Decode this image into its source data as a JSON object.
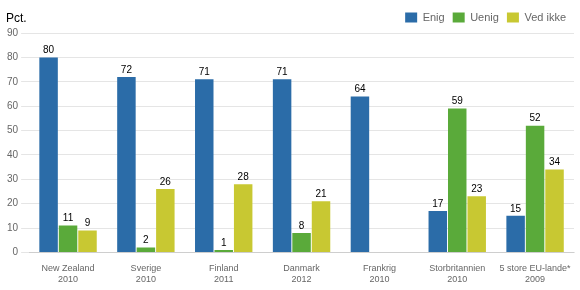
{
  "chart_data": {
    "type": "bar",
    "ylabel": "Pct.",
    "categories": [
      "New Zealand\n2010",
      "Sverige\n2010",
      "Finland\n2011",
      "Danmark\n2012",
      "Frankrig\n2010",
      "Storbritannien\n2010",
      "5 store EU-lande*\n2009"
    ],
    "series": [
      {
        "name": "Enig",
        "color": "#2b6ca8",
        "values": [
          80,
          72,
          71,
          71,
          64,
          17,
          15
        ]
      },
      {
        "name": "Uenig",
        "color": "#5aaa3a",
        "values": [
          11,
          2,
          1,
          8,
          0,
          59,
          52
        ],
        "value_labels": [
          "11",
          "2",
          "1",
          "8",
          null,
          "59",
          "52"
        ]
      },
      {
        "name": "Ved ikke",
        "color": "#c8c832",
        "values": [
          9,
          26,
          28,
          21,
          0,
          23,
          34
        ],
        "value_labels": [
          "9",
          "26",
          "28",
          "21",
          null,
          "23",
          "34"
        ]
      }
    ],
    "ylim": [
      0,
      90
    ],
    "yticks": [
      0,
      10,
      20,
      30,
      40,
      50,
      60,
      70,
      80,
      90
    ],
    "grid": true,
    "legend": "upper right",
    "data_labels": true
  }
}
